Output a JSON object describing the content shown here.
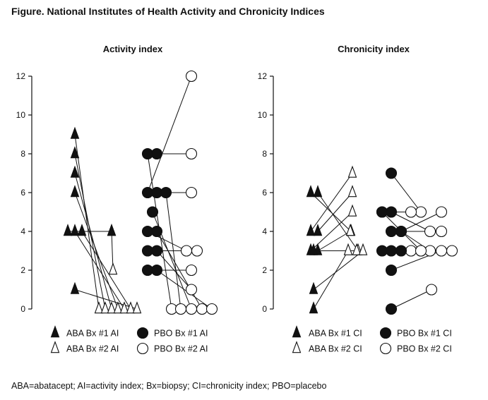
{
  "figure_title": "Figure. National Institutes of Health Activity and Chronicity Indices",
  "footnote": "ABA=abatacept; AI=activity index; Bx=biopsy; CI=chronicity index; PBO=placebo",
  "colors": {
    "ink": "#111111",
    "background": "#ffffff"
  },
  "chart_data": [
    {
      "type": "scatter",
      "title": "Activity index",
      "ylim": [
        0,
        12
      ],
      "yticks": [
        "0",
        "2",
        "4",
        "6",
        "8",
        "10",
        "12"
      ],
      "legend": [
        {
          "label": "ABA Bx #1 AI",
          "marker": "filled-triangle"
        },
        {
          "label": "ABA Bx #2 AI",
          "marker": "open-triangle"
        },
        {
          "label": "PBO Bx #1 AI",
          "marker": "filled-circle"
        },
        {
          "label": "PBO Bx #2 AI",
          "marker": "open-circle"
        }
      ],
      "groups": [
        {
          "name": "ABA",
          "pairs": [
            [
              9,
              0
            ],
            [
              8,
              0
            ],
            [
              7,
              0
            ],
            [
              6,
              0
            ],
            [
              4,
              4
            ],
            [
              4,
              0
            ],
            [
              4,
              0
            ],
            [
              1,
              0
            ],
            [
              4,
              2
            ]
          ]
        },
        {
          "name": "PBO",
          "pairs": [
            [
              8,
              0
            ],
            [
              8,
              8
            ],
            [
              6,
              12
            ],
            [
              6,
              6
            ],
            [
              6,
              0
            ],
            [
              5,
              0
            ],
            [
              4,
              3
            ],
            [
              4,
              0
            ],
            [
              3,
              3
            ],
            [
              3,
              1
            ],
            [
              2,
              2
            ],
            [
              2,
              0
            ]
          ]
        }
      ]
    },
    {
      "type": "scatter",
      "title": "Chronicity index",
      "ylim": [
        0,
        12
      ],
      "yticks": [
        "0",
        "2",
        "4",
        "6",
        "8",
        "10",
        "12"
      ],
      "legend": [
        {
          "label": "ABA Bx #1 CI",
          "marker": "filled-triangle"
        },
        {
          "label": "ABA Bx #2 CI",
          "marker": "open-triangle"
        },
        {
          "label": "PBO Bx #1 CI",
          "marker": "filled-circle"
        },
        {
          "label": "PBO Bx #2 CI",
          "marker": "open-circle"
        }
      ],
      "groups": [
        {
          "name": "ABA",
          "pairs": [
            [
              6,
              4
            ],
            [
              6,
              3
            ],
            [
              4,
              7
            ],
            [
              4,
              6
            ],
            [
              3,
              5
            ],
            [
              3,
              4
            ],
            [
              3,
              3
            ],
            [
              1,
              3
            ],
            [
              0,
              3
            ]
          ]
        },
        {
          "name": "PBO",
          "pairs": [
            [
              7,
              5
            ],
            [
              5,
              5
            ],
            [
              5,
              4
            ],
            [
              5,
              3
            ],
            [
              4,
              5
            ],
            [
              4,
              4
            ],
            [
              4,
              3
            ],
            [
              3,
              3
            ],
            [
              3,
              3
            ],
            [
              3,
              3
            ],
            [
              2,
              3
            ],
            [
              0,
              1
            ]
          ]
        }
      ]
    }
  ]
}
